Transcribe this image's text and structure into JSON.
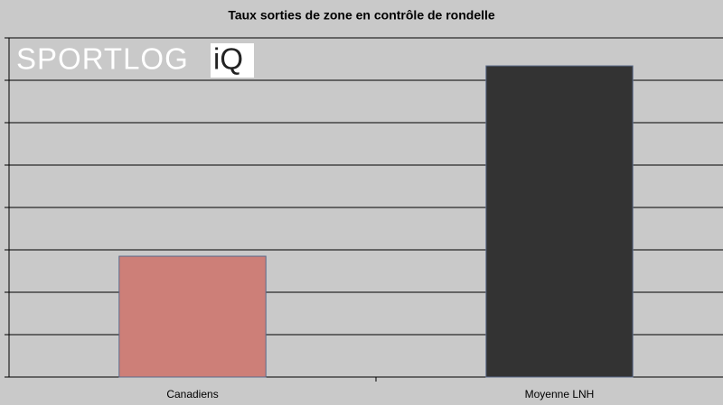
{
  "chart_data": {
    "type": "bar",
    "title": "Taux sorties de zone en contrôle de rondelle",
    "categories": [
      "Canadiens",
      "Moyenne LNH"
    ],
    "values": [
      2.85,
      7.34
    ],
    "colors": [
      "#cd7f78",
      "#333333"
    ],
    "ylim": [
      0,
      8
    ],
    "yticks": [
      0,
      1,
      2,
      3,
      4,
      5,
      6,
      7,
      8
    ],
    "grid": true
  },
  "logo": {
    "text": "SPORTLOG",
    "highlight": "iQ"
  }
}
